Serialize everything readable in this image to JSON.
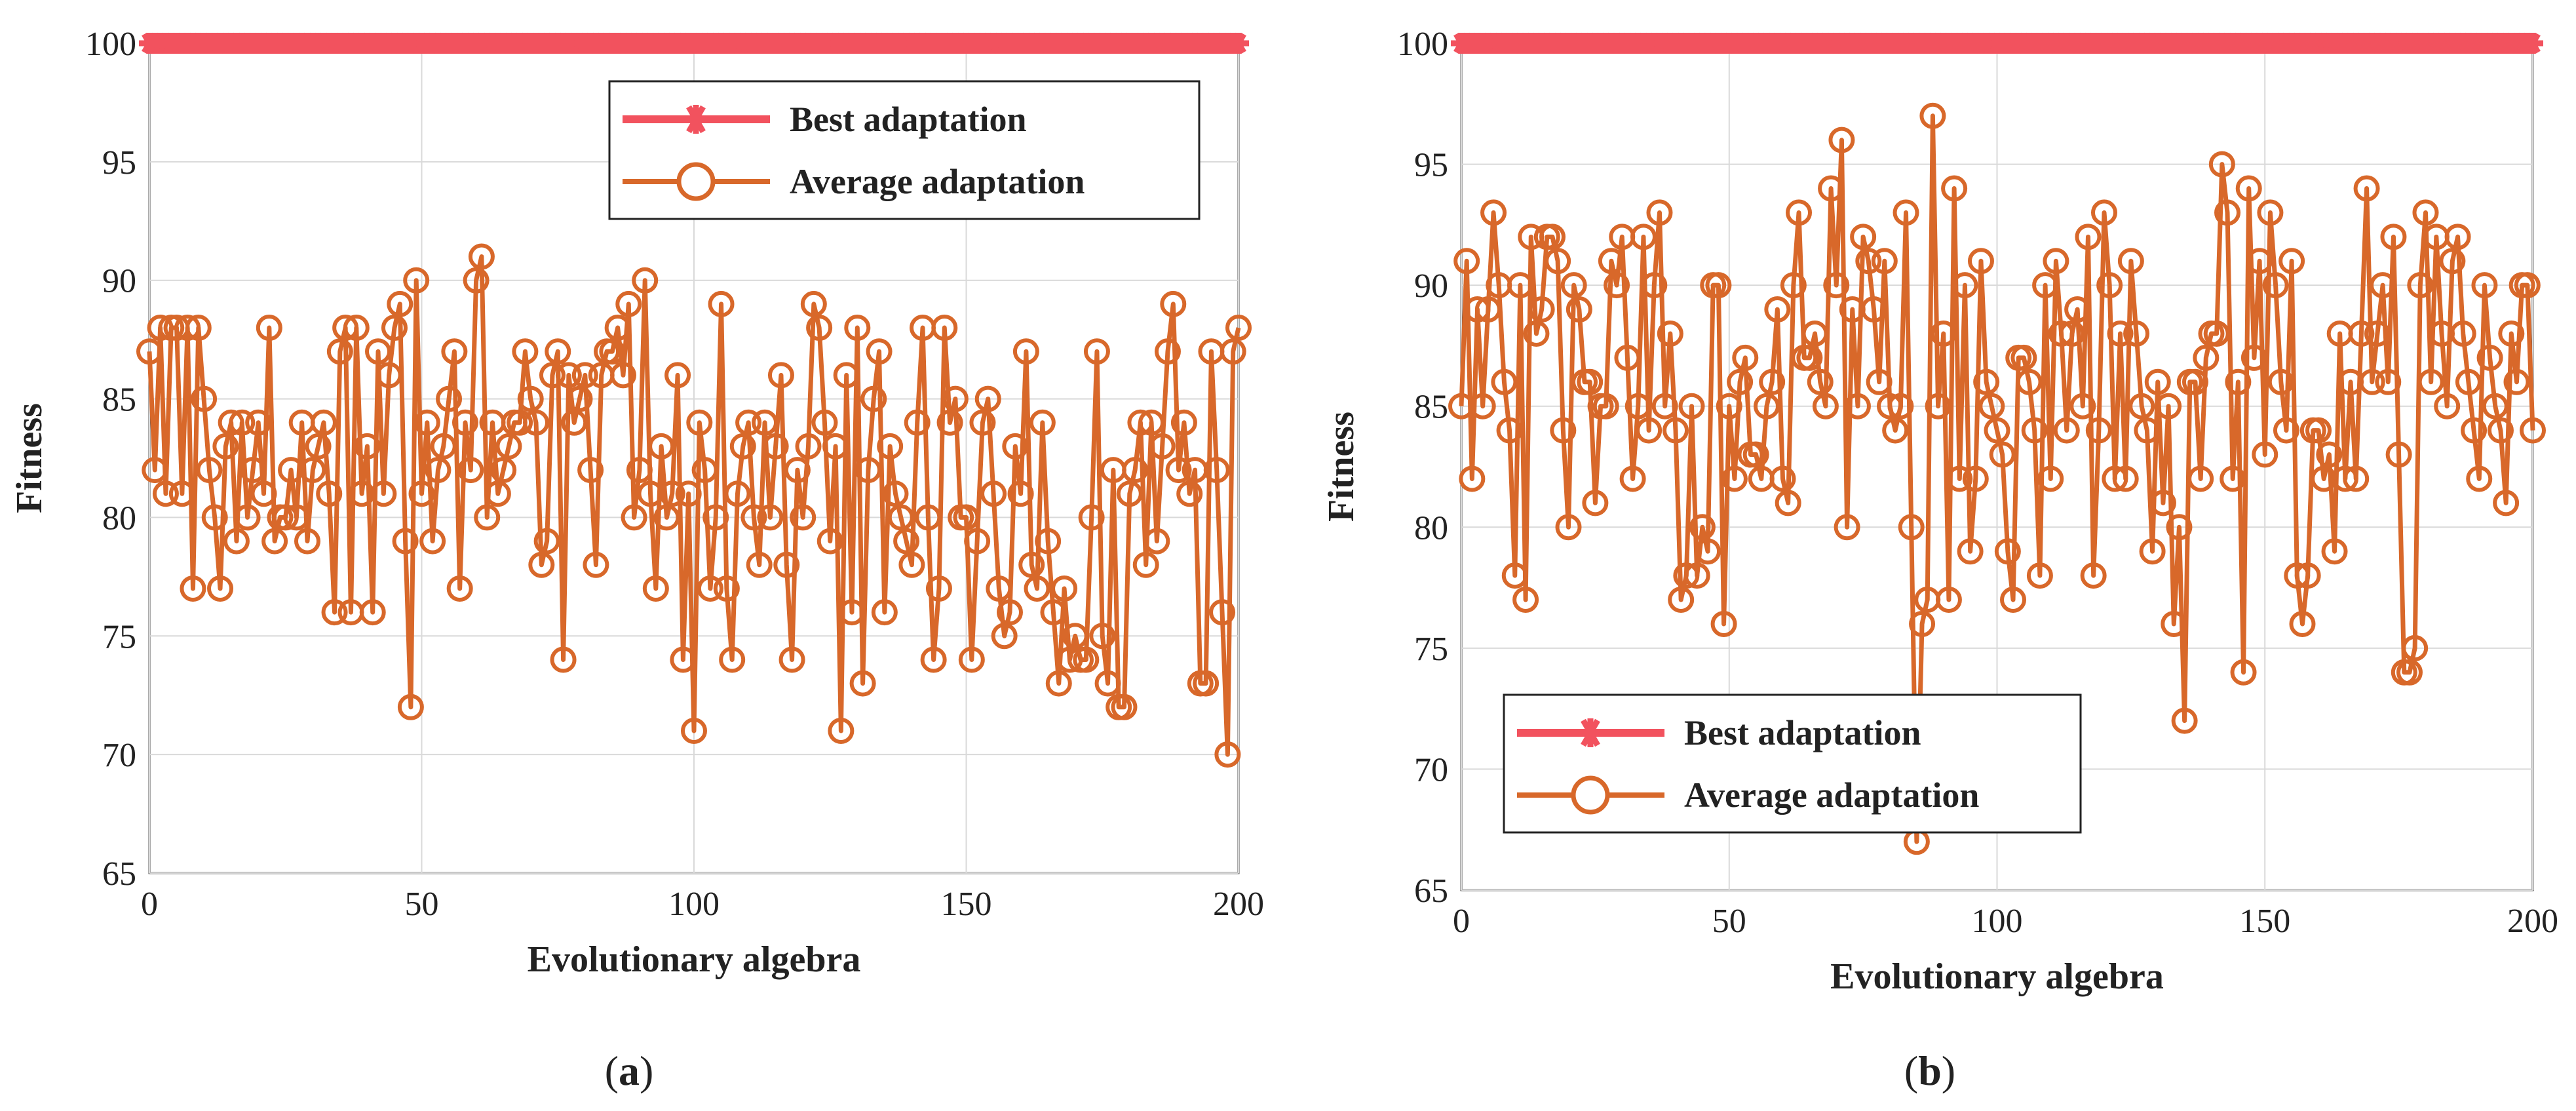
{
  "colors": {
    "best": "#f2525e",
    "average": "#d8682a",
    "grid": "#d9d9d9",
    "axis": "#555555"
  },
  "chart_data": [
    {
      "panel": "a",
      "type": "line",
      "caption": "a",
      "xlabel": "Evolutionary algebra",
      "ylabel": "Fitness",
      "xlim": [
        0,
        200
      ],
      "ylim": [
        65,
        100
      ],
      "xticks": [
        "0",
        "50",
        "100",
        "150",
        "200"
      ],
      "yticks": [
        "65",
        "70",
        "75",
        "80",
        "85",
        "90",
        "95",
        "100"
      ],
      "grid": true,
      "legend_position": "top-right",
      "series": [
        {
          "name": "Best adaptation",
          "marker": "asterisk",
          "constant": 100
        },
        {
          "name": "Average adaptation",
          "marker": "circle",
          "values": [
            87,
            82,
            88,
            81,
            88,
            88,
            81,
            88,
            77,
            88,
            85,
            82,
            80,
            77,
            83,
            84,
            79,
            84,
            80,
            82,
            84,
            81,
            88,
            79,
            80,
            80,
            82,
            80,
            84,
            79,
            82,
            83,
            84,
            81,
            76,
            87,
            88,
            76,
            88,
            81,
            83,
            76,
            87,
            81,
            86,
            88,
            89,
            79,
            72,
            90,
            81,
            84,
            79,
            82,
            83,
            85,
            87,
            77,
            84,
            82,
            90,
            91,
            80,
            84,
            81,
            82,
            83,
            84,
            84,
            87,
            85,
            84,
            78,
            79,
            86,
            87,
            74,
            86,
            84,
            85,
            86,
            82,
            78,
            86,
            87,
            87,
            88,
            86,
            89,
            80,
            82,
            90,
            81,
            77,
            83,
            80,
            81,
            86,
            74,
            81,
            71,
            84,
            82,
            77,
            80,
            89,
            77,
            74,
            81,
            83,
            84,
            80,
            78,
            84,
            80,
            83,
            86,
            78,
            74,
            82,
            80,
            83,
            89,
            88,
            84,
            79,
            83,
            71,
            86,
            76,
            88,
            73,
            82,
            85,
            87,
            76,
            83,
            81,
            80,
            79,
            78,
            84,
            88,
            80,
            74,
            77,
            88,
            84,
            85,
            80,
            80,
            74,
            79,
            84,
            85,
            81,
            77,
            75,
            76,
            83,
            81,
            87,
            78,
            77,
            84,
            79,
            76,
            73,
            77,
            74,
            75,
            74,
            74,
            80,
            87,
            75,
            73,
            82,
            72,
            72,
            81,
            82,
            84,
            78,
            84,
            79,
            83,
            87,
            89,
            82,
            84,
            81,
            82,
            73,
            73,
            87,
            82,
            76,
            70,
            87,
            88
          ]
        }
      ]
    },
    {
      "panel": "b",
      "type": "line",
      "caption": "b",
      "xlabel": "Evolutionary algebra",
      "ylabel": "Fitness",
      "xlim": [
        0,
        200
      ],
      "ylim": [
        65,
        100
      ],
      "xticks": [
        "0",
        "50",
        "100",
        "150",
        "200"
      ],
      "yticks": [
        "65",
        "70",
        "75",
        "80",
        "85",
        "90",
        "95",
        "100"
      ],
      "grid": true,
      "legend_position": "bottom-left",
      "series": [
        {
          "name": "Best adaptation",
          "marker": "asterisk",
          "constant": 100
        },
        {
          "name": "Average adaptation",
          "marker": "circle",
          "values": [
            85,
            91,
            82,
            89,
            85,
            89,
            93,
            90,
            86,
            84,
            78,
            90,
            77,
            92,
            88,
            89,
            92,
            92,
            91,
            84,
            80,
            90,
            89,
            86,
            86,
            81,
            85,
            85,
            91,
            90,
            92,
            87,
            82,
            85,
            92,
            84,
            90,
            93,
            85,
            88,
            84,
            77,
            78,
            85,
            78,
            80,
            79,
            90,
            90,
            76,
            85,
            82,
            86,
            87,
            83,
            83,
            82,
            85,
            86,
            89,
            82,
            81,
            90,
            93,
            87,
            87,
            88,
            86,
            85,
            94,
            90,
            96,
            80,
            89,
            85,
            92,
            91,
            89,
            86,
            91,
            85,
            84,
            85,
            93,
            80,
            67,
            76,
            77,
            97,
            85,
            88,
            77,
            94,
            82,
            90,
            79,
            82,
            91,
            86,
            85,
            84,
            83,
            79,
            77,
            87,
            87,
            86,
            84,
            78,
            90,
            82,
            91,
            88,
            84,
            88,
            89,
            85,
            92,
            78,
            84,
            93,
            90,
            82,
            88,
            82,
            91,
            88,
            85,
            84,
            79,
            86,
            81,
            85,
            76,
            80,
            72,
            86,
            86,
            82,
            87,
            88,
            88,
            95,
            93,
            82,
            86,
            74,
            94,
            87,
            91,
            83,
            93,
            90,
            86,
            84,
            91,
            78,
            76,
            78,
            84,
            84,
            82,
            83,
            79,
            88,
            82,
            86,
            82,
            88,
            94,
            86,
            88,
            90,
            86,
            92,
            83,
            74,
            74,
            75,
            90,
            93,
            86,
            92,
            88,
            85,
            91,
            92,
            88,
            86,
            84,
            82,
            90,
            87,
            85,
            84,
            81,
            88,
            86,
            90,
            90,
            84
          ]
        }
      ]
    }
  ]
}
